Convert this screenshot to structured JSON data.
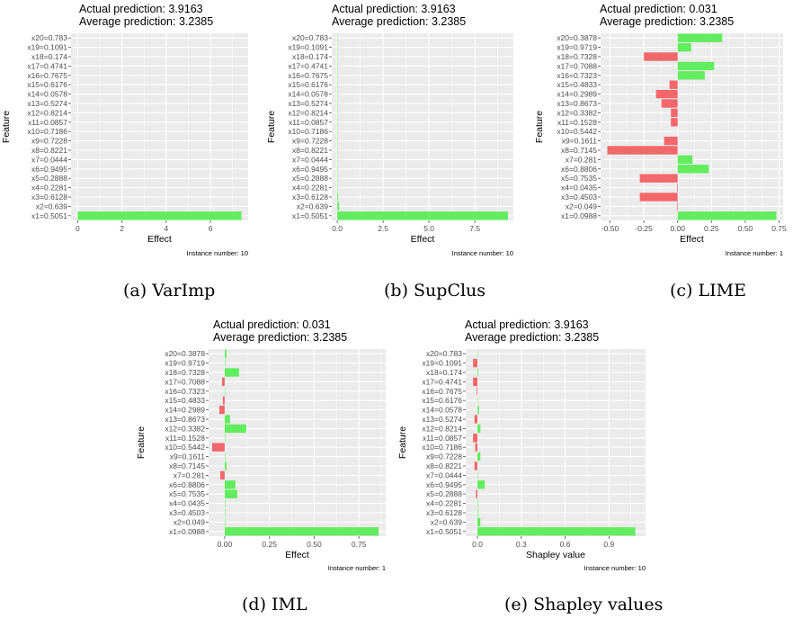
{
  "chart_data": [
    {
      "id": "a",
      "type": "bar",
      "title_lines": [
        "Actual prediction: 3.9163",
        "Average prediction: 3.2385"
      ],
      "xlabel": "Effect",
      "ylabel": "Feature",
      "xlim": [
        -0.3,
        7.7
      ],
      "xticks": [
        0,
        2,
        4,
        6
      ],
      "xtick_labels": [
        "0",
        "2",
        "4",
        "6"
      ],
      "instance_label": "Instance number: 10",
      "caption": "(a) VarImp",
      "categories": [
        "x1=0.5051",
        "x2=0.639",
        "x3=0.6128",
        "x4=0.2281",
        "x5=0.2888",
        "x6=0.9495",
        "x7=0.0444",
        "x8=0.8221",
        "x9=0.7228",
        "x10=0.7186",
        "x11=0.0857",
        "x12=0.8214",
        "x13=0.5274",
        "x14=0.0578",
        "x15=0.6176",
        "x16=0.7675",
        "x17=0.4741",
        "x18=0.174",
        "x19=0.1091",
        "x20=0.783"
      ],
      "values": [
        7.4,
        0,
        0,
        0,
        0,
        0,
        0,
        0,
        0,
        0,
        0,
        0,
        0,
        0,
        0,
        0,
        0,
        0,
        0,
        0
      ]
    },
    {
      "id": "b",
      "type": "bar",
      "title_lines": [
        "Actual prediction: 3.9163",
        "Average prediction: 3.2385"
      ],
      "xlabel": "Effect",
      "ylabel": "Feature",
      "xlim": [
        -0.3,
        9.6
      ],
      "xticks": [
        0,
        2.5,
        5,
        7.5
      ],
      "xtick_labels": [
        "0.0",
        "2.5",
        "5.0",
        "7.5"
      ],
      "instance_label": "Instance number: 10",
      "caption": "(b) SupClus",
      "categories": [
        "x1=0.5051",
        "x2=0.639",
        "x3=0.6128",
        "x4=0.2281",
        "x5=0.2888",
        "x6=0.9495",
        "x7=0.0444",
        "x8=0.8221",
        "x9=0.7228",
        "x10=0.7186",
        "x11=0.0857",
        "x12=0.8214",
        "x13=0.5274",
        "x14=0.0578",
        "x15=0.6176",
        "x16=0.7675",
        "x17=0.4741",
        "x18=0.174",
        "x19=0.1091",
        "x20=0.783"
      ],
      "values": [
        9.3,
        0.1,
        0.05,
        0.02,
        0.02,
        0.02,
        0.02,
        0.02,
        0.02,
        0.02,
        0.02,
        0.02,
        0.02,
        0.02,
        0.02,
        0.02,
        0.02,
        0.02,
        0.02,
        0.02
      ]
    },
    {
      "id": "c",
      "type": "bar",
      "title_lines": [
        "Actual prediction: 0.031",
        "Average prediction: 3.2385"
      ],
      "xlabel": "Effect",
      "ylabel": "Feature",
      "xlim": [
        -0.57,
        0.78
      ],
      "xticks": [
        -0.5,
        -0.25,
        0,
        0.25,
        0.5,
        0.75
      ],
      "xtick_labels": [
        "-0.50",
        "-0.25",
        "0.00",
        "0.25",
        "0.50",
        "0.75"
      ],
      "instance_label": "Instance number: 1",
      "caption": "(c) LIME",
      "categories": [
        "x1=0.0988",
        "x2=0.049",
        "x3=0.4503",
        "x4=0.0435",
        "x5=0.7535",
        "x6=0.8806",
        "x7=0.281",
        "x8=0.7145",
        "x9=0.1611",
        "x10=0.5442",
        "x11=0.1528",
        "x12=0.3382",
        "x13=0.8673",
        "x14=0.2989",
        "x15=0.4833",
        "x16=0.7323",
        "x17=0.7088",
        "x18=0.7328",
        "x19=0.9719",
        "x20=0.3878"
      ],
      "values": [
        0.73,
        -0.005,
        -0.28,
        -0.005,
        -0.28,
        0.23,
        0.11,
        -0.52,
        -0.1,
        0,
        -0.05,
        -0.05,
        -0.12,
        -0.16,
        -0.06,
        0.2,
        0.27,
        -0.25,
        0.1,
        0.33
      ]
    },
    {
      "id": "d",
      "type": "bar",
      "title_lines": [
        "Actual prediction: 0.031",
        "Average prediction: 3.2385"
      ],
      "xlabel": "Effect",
      "ylabel": "Feature",
      "xlim": [
        -0.09,
        0.9
      ],
      "xticks": [
        0,
        0.25,
        0.5,
        0.75
      ],
      "xtick_labels": [
        "0.00",
        "0.25",
        "0.50",
        "0.75"
      ],
      "instance_label": "Instance number: 1",
      "caption": "(d) IML",
      "categories": [
        "x1=0.0988",
        "x2=0.049",
        "x3=0.4503",
        "x4=0.0435",
        "x5=0.7535",
        "x6=0.8806",
        "x7=0.281",
        "x8=0.7145",
        "x9=0.1611",
        "x10=0.5442",
        "x11=0.1528",
        "x12=0.3382",
        "x13=0.8673",
        "x14=0.2989",
        "x15=0.4833",
        "x16=0.7323",
        "x17=0.7088",
        "x18=0.7328",
        "x19=0.9719",
        "x20=0.3878"
      ],
      "values": [
        0.86,
        0.003,
        0.003,
        0.003,
        0.07,
        0.06,
        -0.025,
        0.01,
        0.003,
        -0.07,
        0.003,
        0.12,
        0.03,
        -0.03,
        -0.01,
        0.003,
        -0.015,
        0.08,
        0.003,
        0.01
      ]
    },
    {
      "id": "e",
      "type": "bar",
      "title_lines": [
        "Actual prediction: 3.9163",
        "Average prediction: 3.2385"
      ],
      "xlabel": "Shapley value",
      "ylabel": "Feature",
      "xlim": [
        -0.08,
        1.15
      ],
      "xticks": [
        0,
        0.3,
        0.6,
        0.9
      ],
      "xtick_labels": [
        "0.0",
        "0.3",
        "0.6",
        "0.9"
      ],
      "instance_label": "Instance number: 10",
      "caption": "(e) Shapley values",
      "categories": [
        "x1=0.5051",
        "x2=0.639",
        "x3=0.6128",
        "x4=0.2281",
        "x5=0.2888",
        "x6=0.9495",
        "x7=0.0444",
        "x8=0.8221",
        "x9=0.7228",
        "x10=0.7186",
        "x11=0.0857",
        "x12=0.8214",
        "x13=0.5274",
        "x14=0.0578",
        "x15=0.6176",
        "x16=0.7675",
        "x17=0.4741",
        "x18=0.174",
        "x19=0.1091",
        "x20=0.783"
      ],
      "values": [
        1.08,
        0.02,
        0.005,
        0.004,
        -0.01,
        0.05,
        0.003,
        -0.02,
        0.02,
        -0.015,
        -0.03,
        0.02,
        -0.02,
        0.01,
        0.002,
        -0.005,
        -0.03,
        0.005,
        -0.03,
        0.003
      ]
    }
  ],
  "colors": {
    "positive": "#61ed5d",
    "negative": "#f2676a",
    "panel": "#ebebeb",
    "grid": "#ffffff"
  }
}
